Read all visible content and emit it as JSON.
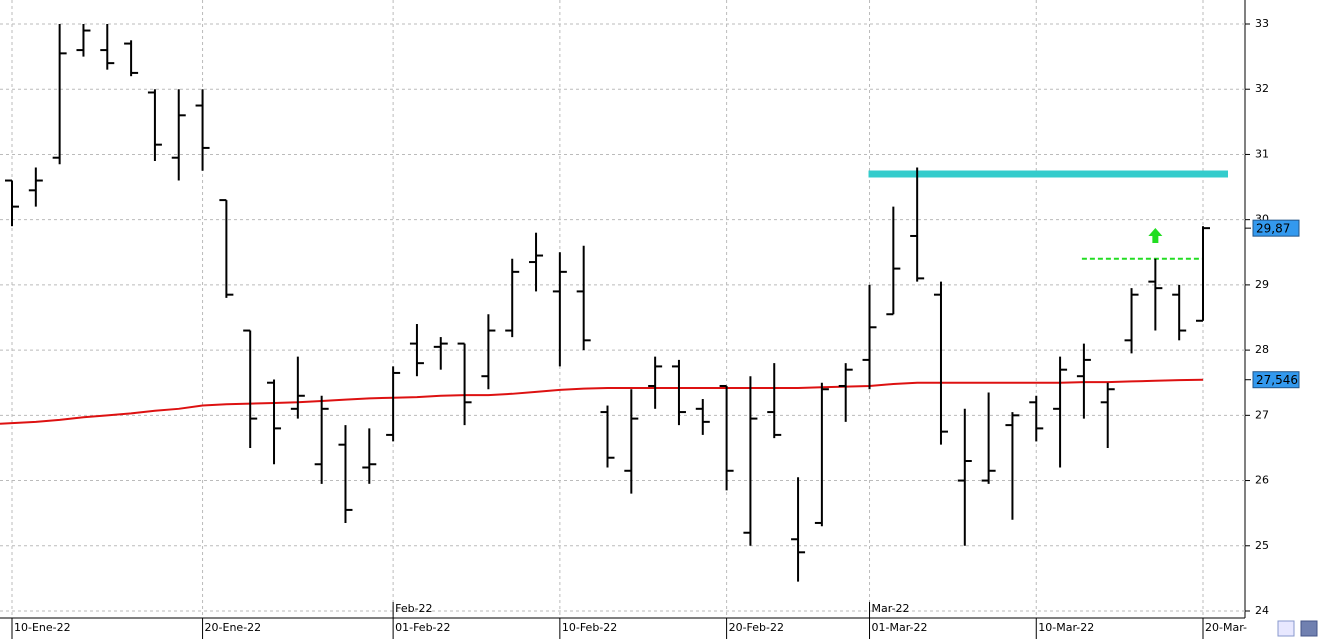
{
  "chart_data": {
    "type": "ohlc",
    "categories": [
      "10-Ene-22",
      null,
      null,
      null,
      null,
      null,
      null,
      null,
      "20-Ene-22",
      null,
      null,
      null,
      null,
      null,
      null,
      null,
      "01-Feb-22",
      null,
      null,
      null,
      null,
      null,
      null,
      "10-Feb-22",
      null,
      null,
      null,
      null,
      null,
      null,
      "20-Feb-22",
      null,
      null,
      null,
      null,
      null,
      "01-Mar-22",
      null,
      null,
      null,
      null,
      null,
      null,
      "10-Mar-22",
      null,
      null,
      null,
      null,
      null,
      null,
      "20-Mar-"
    ],
    "period_labels": [
      {
        "at": "01-Feb-22",
        "label": "Feb-22"
      },
      {
        "at": "01-Mar-22",
        "label": "Mar-22"
      }
    ],
    "open": [
      30.6,
      30.45,
      30.95,
      32.6,
      32.6,
      32.7,
      31.95,
      30.95,
      31.75,
      30.3,
      28.3,
      27.5,
      27.1,
      26.25,
      26.55,
      26.2,
      26.7,
      28.1,
      28.05,
      28.1,
      27.6,
      28.3,
      29.35,
      28.9,
      28.9,
      27.05,
      26.15,
      27.45,
      27.75,
      27.1,
      27.45,
      25.2,
      27.05,
      25.1,
      25.35,
      27.45,
      27.85,
      28.55,
      29.75,
      28.85,
      26.0,
      26.0,
      26.85,
      27.2,
      27.1,
      27.6,
      27.2,
      28.15,
      29.05,
      28.85,
      28.45
    ],
    "high": [
      30.6,
      30.8,
      33.0,
      33.0,
      33.0,
      32.75,
      32.0,
      32.0,
      32.0,
      30.3,
      28.3,
      27.55,
      27.9,
      27.3,
      26.85,
      26.8,
      27.75,
      28.4,
      28.2,
      28.1,
      28.55,
      29.4,
      29.8,
      29.5,
      29.6,
      27.15,
      27.4,
      27.9,
      27.85,
      27.25,
      27.45,
      27.6,
      27.8,
      26.05,
      27.5,
      27.8,
      29.0,
      30.2,
      30.8,
      29.05,
      27.1,
      27.35,
      27.05,
      27.3,
      27.9,
      28.1,
      27.5,
      28.95,
      29.4,
      29.0,
      29.9
    ],
    "low": [
      29.9,
      30.2,
      30.85,
      32.5,
      32.3,
      32.2,
      30.9,
      30.6,
      30.75,
      28.8,
      26.5,
      26.25,
      26.95,
      25.95,
      25.35,
      25.95,
      26.6,
      27.6,
      27.7,
      26.85,
      27.4,
      28.2,
      28.9,
      27.75,
      28.0,
      26.2,
      25.8,
      27.1,
      26.85,
      26.7,
      25.85,
      25.0,
      26.65,
      24.45,
      25.3,
      26.9,
      27.4,
      28.55,
      29.05,
      26.55,
      25.0,
      25.95,
      25.4,
      26.6,
      26.2,
      26.95,
      26.5,
      27.95,
      28.3,
      28.15,
      28.45
    ],
    "close": [
      30.2,
      30.6,
      32.55,
      32.9,
      32.4,
      32.25,
      31.15,
      31.6,
      31.1,
      28.85,
      26.95,
      26.8,
      27.3,
      27.1,
      25.55,
      26.25,
      27.65,
      27.8,
      28.1,
      27.2,
      28.3,
      29.2,
      29.45,
      29.2,
      28.15,
      26.35,
      26.95,
      27.75,
      27.05,
      26.9,
      26.15,
      26.95,
      26.7,
      24.9,
      27.4,
      27.7,
      28.35,
      29.25,
      29.1,
      26.75,
      26.3,
      26.15,
      27.0,
      26.8,
      27.7,
      27.85,
      27.4,
      28.85,
      28.95,
      28.3,
      29.87
    ],
    "bar_color": "#000000",
    "moving_average": {
      "color": "#dd1111",
      "values": [
        26.87,
        26.9,
        26.93,
        26.97,
        27.0,
        27.03,
        27.07,
        27.1,
        27.15,
        27.17,
        27.18,
        27.19,
        27.2,
        27.22,
        27.24,
        27.26,
        27.27,
        27.28,
        27.3,
        27.31,
        27.31,
        27.33,
        27.36,
        27.39,
        27.41,
        27.42,
        27.42,
        27.42,
        27.42,
        27.42,
        27.42,
        27.42,
        27.42,
        27.42,
        27.43,
        27.44,
        27.45,
        27.48,
        27.5,
        27.5,
        27.5,
        27.5,
        27.5,
        27.5,
        27.5,
        27.51,
        27.51,
        27.52,
        27.53,
        27.54,
        27.546
      ]
    },
    "resistance": {
      "value": 30.7,
      "color": "#33cccc"
    },
    "breakout": {
      "value": 29.4,
      "color": "#22dd22",
      "arrow": 29.75
    },
    "price_labels": [
      {
        "value": 29.87,
        "label": "29,87"
      },
      {
        "value": 27.546,
        "label": "27,546"
      }
    ],
    "price_label_color": "#3399ee",
    "ylim": [
      24,
      33.2
    ],
    "yticks": [
      24,
      25,
      26,
      27,
      28,
      29,
      30,
      31,
      32,
      33
    ],
    "grid": true
  }
}
